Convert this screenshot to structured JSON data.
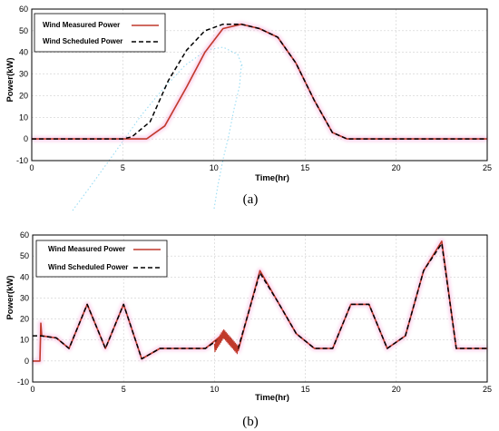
{
  "colors": {
    "measured": "#c0392b",
    "scheduled": "#000000",
    "grid": "#cfcfcf",
    "halo": "#f7b6e0",
    "artifact": "#7fd3f0"
  },
  "chart_data": [
    {
      "type": "line",
      "panel_label": "(a)",
      "xlabel": "Time(hr)",
      "ylabel": "Power(kW)",
      "xlim": [
        0,
        25
      ],
      "ylim": [
        -10,
        60
      ],
      "xticks": [
        "0",
        "5",
        "10",
        "15",
        "20",
        "25"
      ],
      "yticks": [
        "-10",
        "0",
        "10",
        "20",
        "30",
        "40",
        "50",
        "60"
      ],
      "grid": true,
      "legend_position": "top-left",
      "series": [
        {
          "name": "Wind Measured Power",
          "style": "solid",
          "x": [
            0,
            1,
            2,
            3,
            4,
            5,
            6,
            6.3,
            7.3,
            8.5,
            9.5,
            10.5,
            11.5,
            12.5,
            13.5,
            14.5,
            15.5,
            16.5,
            17.3,
            18,
            19,
            20,
            21,
            22,
            23,
            24,
            25
          ],
          "y": [
            0,
            0,
            0,
            0,
            0,
            0,
            0,
            0,
            6,
            24,
            40,
            51,
            53,
            51,
            47,
            35,
            18,
            3,
            0,
            0,
            0,
            0,
            0,
            0,
            0,
            0,
            0
          ]
        },
        {
          "name": "Wind Scheduled Power",
          "style": "dashed",
          "x": [
            0,
            1,
            2,
            3,
            4,
            5,
            5.5,
            6.5,
            7.5,
            8.5,
            9.5,
            10.5,
            11.5,
            12.5,
            13.5,
            14.5,
            15.5,
            16.5,
            17.3,
            18,
            19,
            20,
            21,
            22,
            23,
            24,
            25
          ],
          "y": [
            0,
            0,
            0,
            0,
            0,
            0,
            1,
            8,
            27,
            41,
            50,
            53,
            53,
            51,
            47,
            35,
            18,
            3,
            0,
            0,
            0,
            0,
            0,
            0,
            0,
            0,
            0
          ]
        }
      ]
    },
    {
      "type": "line",
      "panel_label": "(b)",
      "xlabel": "Time(hr)",
      "ylabel": "Power(kW)",
      "xlim": [
        0,
        25
      ],
      "ylim": [
        -10,
        60
      ],
      "xticks": [
        "0",
        "5",
        "10",
        "15",
        "20",
        "25"
      ],
      "yticks": [
        "-10",
        "0",
        "10",
        "20",
        "30",
        "40",
        "50",
        "60"
      ],
      "grid": true,
      "legend_position": "top-left",
      "series": [
        {
          "name": "Wind Measured Power",
          "style": "solid",
          "x": [
            0,
            0.4,
            0.45,
            0.5,
            1.3,
            2,
            3,
            4,
            5,
            6,
            7,
            7.5,
            8.5,
            9.5,
            10.5,
            11.3,
            12.5,
            13.5,
            14.5,
            15.5,
            16.5,
            17.5,
            18.5,
            19.5,
            20.5,
            21.5,
            22.5,
            23.3,
            24,
            25
          ],
          "y": [
            0,
            0,
            18,
            12,
            11,
            6,
            27,
            6,
            27,
            1,
            6,
            6,
            6,
            6,
            13,
            5,
            43,
            28,
            13,
            6,
            6,
            27,
            27,
            6,
            12,
            43,
            57,
            6,
            6,
            6
          ]
        },
        {
          "name": "Wind Scheduled Power",
          "style": "dashed",
          "x": [
            0,
            0.45,
            1.3,
            2,
            3,
            4,
            5,
            6,
            7,
            7.5,
            8.5,
            9.5,
            10.5,
            11.3,
            12.5,
            13.5,
            14.5,
            15.5,
            16.5,
            17.5,
            18.5,
            19.5,
            20.5,
            21.5,
            22.5,
            23.3,
            24,
            25
          ],
          "y": [
            12,
            12,
            11,
            6,
            27,
            6,
            27,
            1,
            6,
            6,
            6,
            6,
            12,
            6,
            42,
            28,
            13,
            6,
            6,
            27,
            27,
            6,
            12,
            43,
            56,
            6,
            6,
            6
          ]
        }
      ]
    }
  ]
}
